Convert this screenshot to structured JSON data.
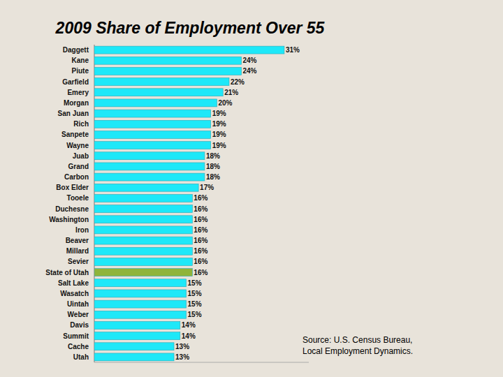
{
  "chart_data": {
    "type": "bar",
    "orientation": "horizontal",
    "title": "2009 Share of Employment Over 55",
    "categories": [
      "Daggett",
      "Kane",
      "Piute",
      "Garfield",
      "Emery",
      "Morgan",
      "San Juan",
      "Rich",
      "Sanpete",
      "Wayne",
      "Juab",
      "Grand",
      "Carbon",
      "Box Elder",
      "Tooele",
      "Duchesne",
      "Washington",
      "Iron",
      "Beaver",
      "Millard",
      "Sevier",
      "State of Utah",
      "Salt Lake",
      "Wasatch",
      "Uintah",
      "Weber",
      "Davis",
      "Summit",
      "Cache",
      "Utah"
    ],
    "values": [
      31,
      24,
      24,
      22,
      21,
      20,
      19,
      19,
      19,
      19,
      18,
      18,
      18,
      17,
      16,
      16,
      16,
      16,
      16,
      16,
      16,
      16,
      15,
      15,
      15,
      15,
      14,
      14,
      13,
      13
    ],
    "value_labels": [
      "31%",
      "24%",
      "24%",
      "22%",
      "21%",
      "20%",
      "19%",
      "19%",
      "19%",
      "19%",
      "18%",
      "18%",
      "18%",
      "17%",
      "16%",
      "16%",
      "16%",
      "16%",
      "16%",
      "16%",
      "16%",
      "16%",
      "15%",
      "15%",
      "15%",
      "15%",
      "14%",
      "14%",
      "13%",
      "13%"
    ],
    "colors": [
      "#1ee8f8",
      "#1ee8f8",
      "#1ee8f8",
      "#1ee8f8",
      "#1ee8f8",
      "#1ee8f8",
      "#1ee8f8",
      "#1ee8f8",
      "#1ee8f8",
      "#1ee8f8",
      "#1ee8f8",
      "#1ee8f8",
      "#1ee8f8",
      "#1ee8f8",
      "#1ee8f8",
      "#1ee8f8",
      "#1ee8f8",
      "#1ee8f8",
      "#1ee8f8",
      "#1ee8f8",
      "#1ee8f8",
      "#8fb43a",
      "#1ee8f8",
      "#1ee8f8",
      "#1ee8f8",
      "#1ee8f8",
      "#1ee8f8",
      "#1ee8f8",
      "#1ee8f8",
      "#1ee8f8"
    ],
    "xlim": [
      0,
      35
    ],
    "data_labels": true,
    "tick_labels": "y",
    "grid": false,
    "annotations": [
      "Source: U.S. Census Bureau,",
      "Local Employment Dynamics."
    ]
  }
}
